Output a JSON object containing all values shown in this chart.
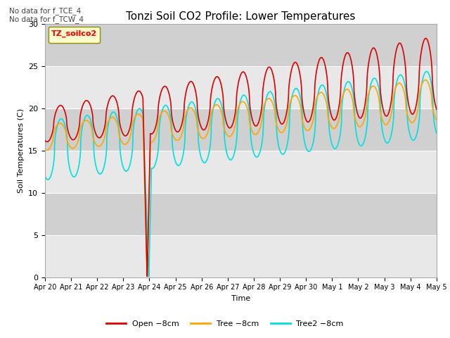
{
  "title": "Tonzi Soil CO2 Profile: Lower Temperatures",
  "ylabel": "Soil Temperatures (C)",
  "xlabel": "Time",
  "top_text": "No data for f_TCE_4\nNo data for f_TCW_4",
  "legend_box_label": "TZ_soilco2",
  "background_color": "#dcdcdc",
  "ylim": [
    0,
    30
  ],
  "line_colors": {
    "open": "#dd0000",
    "tree": "#ffa500",
    "tree2": "#00e0e0"
  },
  "legend_labels": [
    "Open −8cm",
    "Tree −8cm",
    "Tree2 −8cm"
  ],
  "tick_labels": [
    "Apr 20",
    "Apr 21",
    "Apr 22",
    "Apr 23",
    "Apr 24",
    "Apr 25",
    "Apr 26",
    "Apr 27",
    "Apr 28",
    "Apr 29",
    "Apr 30",
    "May 1",
    "May 2",
    "May 3",
    "May 4",
    "May 5"
  ],
  "yticks": [
    0,
    5,
    10,
    15,
    20,
    25,
    30
  ]
}
